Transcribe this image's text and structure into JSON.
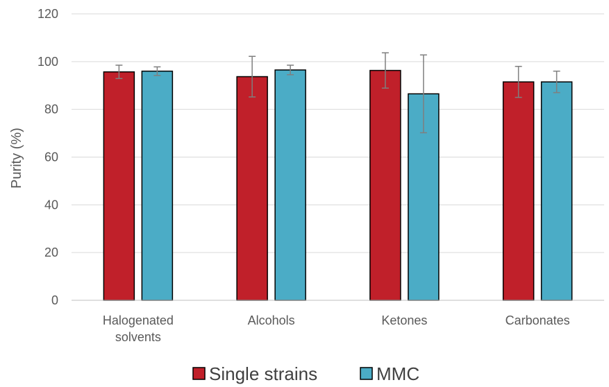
{
  "chart_data": {
    "type": "bar",
    "title": "",
    "xlabel": "",
    "ylabel": "Purity (%)",
    "ylim": [
      0,
      120
    ],
    "yticks": [
      "0",
      "20",
      "40",
      "60",
      "80",
      "100",
      "120"
    ],
    "grid": true,
    "legend_position": "bottom",
    "categories": [
      [
        "Halogenated",
        "solvents"
      ],
      [
        "Alcohols"
      ],
      [
        "Ketones"
      ],
      [
        "Carbonates"
      ]
    ],
    "series": [
      {
        "name": "Single strains",
        "color": "#c0202a",
        "values": [
          95.7,
          93.7,
          96.3,
          91.5
        ],
        "errors": [
          2.8,
          8.5,
          7.4,
          6.5
        ]
      },
      {
        "name": "MMC",
        "color": "#4bacc6",
        "values": [
          96.0,
          96.5,
          86.5,
          91.5
        ],
        "errors": [
          1.8,
          2.0,
          16.3,
          4.5
        ]
      }
    ]
  }
}
